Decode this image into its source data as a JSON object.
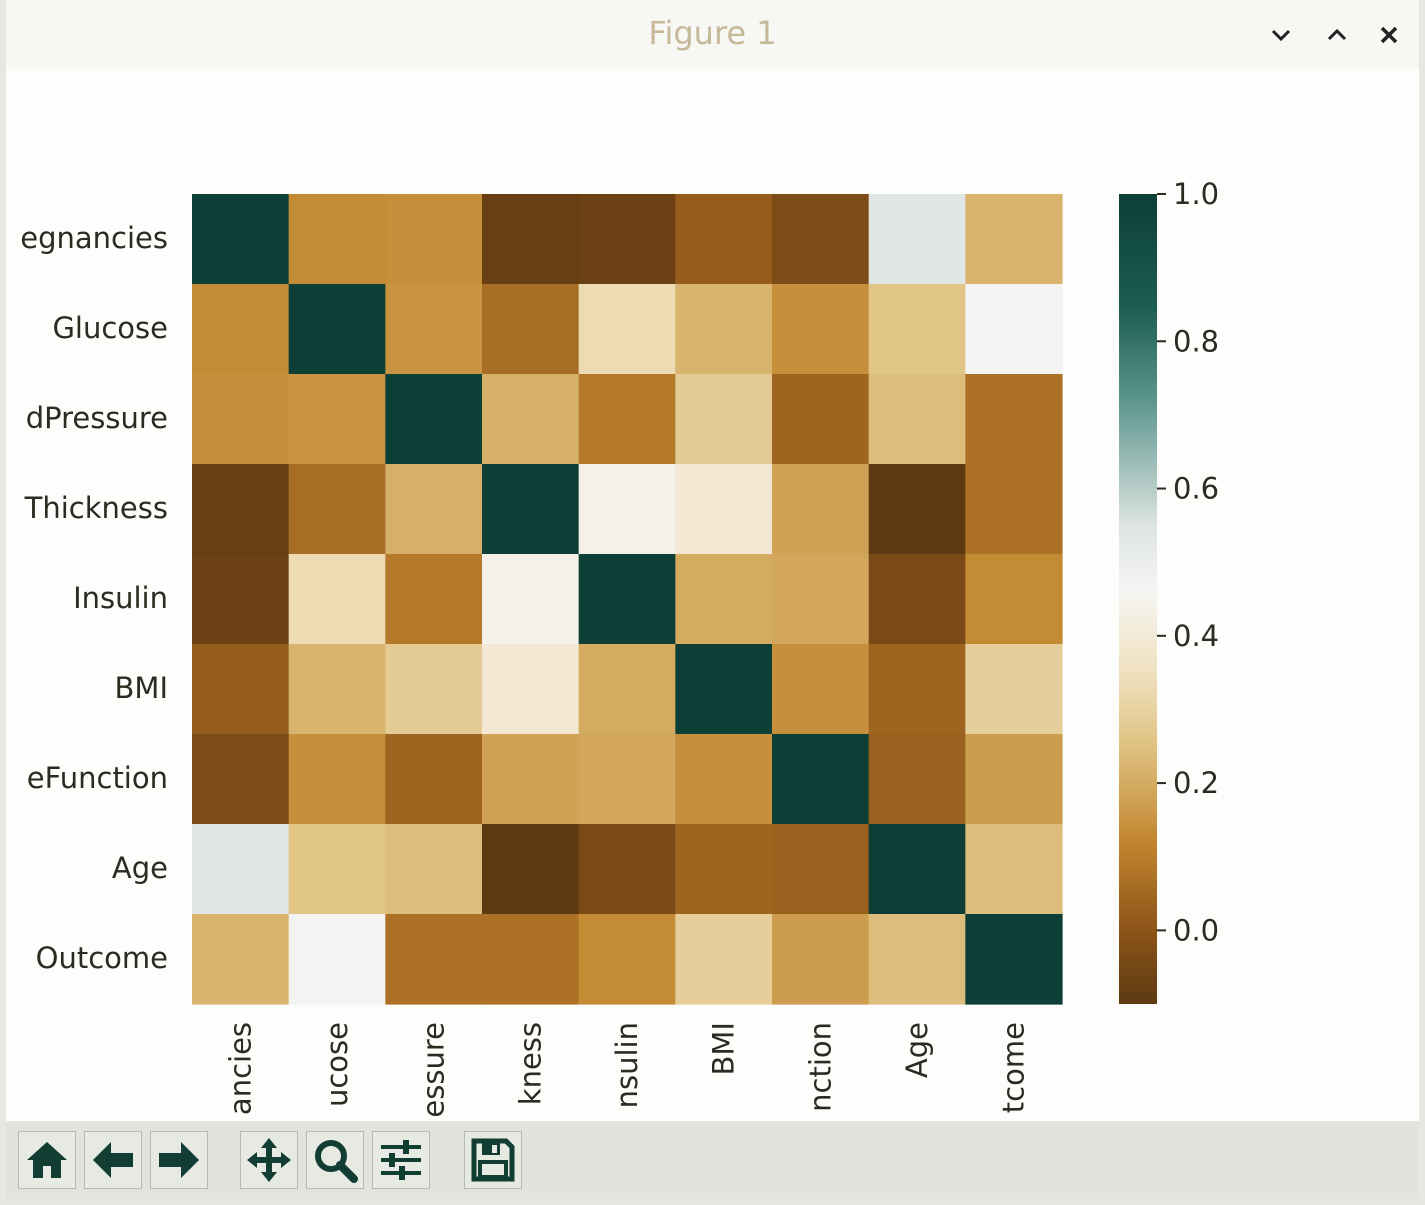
{
  "window": {
    "title": "Figure 1"
  },
  "chart_data": {
    "type": "heatmap",
    "colormap": "BrBG",
    "vmin": -0.1,
    "vmax": 1.0,
    "row_labels": [
      "egnancies",
      "Glucose",
      "dPressure",
      "Thickness",
      "Insulin",
      "BMI",
      "eFunction",
      "Age",
      "Outcome"
    ],
    "col_labels": [
      "ancies",
      "ucose",
      "essure",
      "kness",
      "nsulin",
      "BMI",
      "nction",
      "Age",
      "tcome"
    ],
    "values": [
      [
        1.0,
        0.13,
        0.14,
        -0.08,
        -0.07,
        0.02,
        -0.03,
        0.54,
        0.22
      ],
      [
        0.13,
        1.0,
        0.15,
        0.06,
        0.33,
        0.22,
        0.14,
        0.26,
        0.47
      ],
      [
        0.14,
        0.15,
        1.0,
        0.21,
        0.09,
        0.28,
        0.04,
        0.24,
        0.07
      ],
      [
        -0.08,
        0.06,
        0.21,
        1.0,
        0.44,
        0.39,
        0.18,
        -0.11,
        0.07
      ],
      [
        -0.07,
        0.33,
        0.09,
        0.44,
        1.0,
        0.2,
        0.19,
        -0.04,
        0.13
      ],
      [
        0.02,
        0.22,
        0.28,
        0.39,
        0.2,
        1.0,
        0.14,
        0.04,
        0.29
      ],
      [
        -0.03,
        0.14,
        0.04,
        0.18,
        0.19,
        0.14,
        1.0,
        0.03,
        0.17
      ],
      [
        0.54,
        0.26,
        0.24,
        -0.11,
        -0.04,
        0.04,
        0.03,
        1.0,
        0.24
      ],
      [
        0.22,
        0.47,
        0.07,
        0.07,
        0.13,
        0.29,
        0.17,
        0.24,
        1.0
      ]
    ],
    "colorbar_ticks": [
      "1.0",
      "0.8",
      "0.6",
      "0.4",
      "0.2",
      "0.0"
    ],
    "colorbar_tick_values": [
      1.0,
      0.8,
      0.6,
      0.4,
      0.2,
      0.0
    ],
    "colorbar_stops": [
      {
        "v": -0.1,
        "color": "#5e3a12"
      },
      {
        "v": 0.0,
        "color": "#8c5418"
      },
      {
        "v": 0.12,
        "color": "#c2862f"
      },
      {
        "v": 0.25,
        "color": "#dfc281"
      },
      {
        "v": 0.35,
        "color": "#efe1c0"
      },
      {
        "v": 0.46,
        "color": "#f6f5f3"
      },
      {
        "v": 0.55,
        "color": "#dde4e1"
      },
      {
        "v": 0.72,
        "color": "#5c958d"
      },
      {
        "v": 0.85,
        "color": "#1b5c52"
      },
      {
        "v": 1.0,
        "color": "#0d3f36"
      }
    ]
  },
  "toolbar": {
    "buttons": [
      {
        "name": "home-button",
        "icon": "home-icon"
      },
      {
        "name": "back-button",
        "icon": "arrow-left-icon"
      },
      {
        "name": "forward-button",
        "icon": "arrow-right-icon"
      },
      {
        "name": "pan-button",
        "icon": "move-icon"
      },
      {
        "name": "zoom-button",
        "icon": "magnifier-icon"
      },
      {
        "name": "configure-subplots-button",
        "icon": "sliders-icon"
      },
      {
        "name": "save-button",
        "icon": "floppy-disk-icon"
      }
    ],
    "icon_color": "#123d33"
  }
}
